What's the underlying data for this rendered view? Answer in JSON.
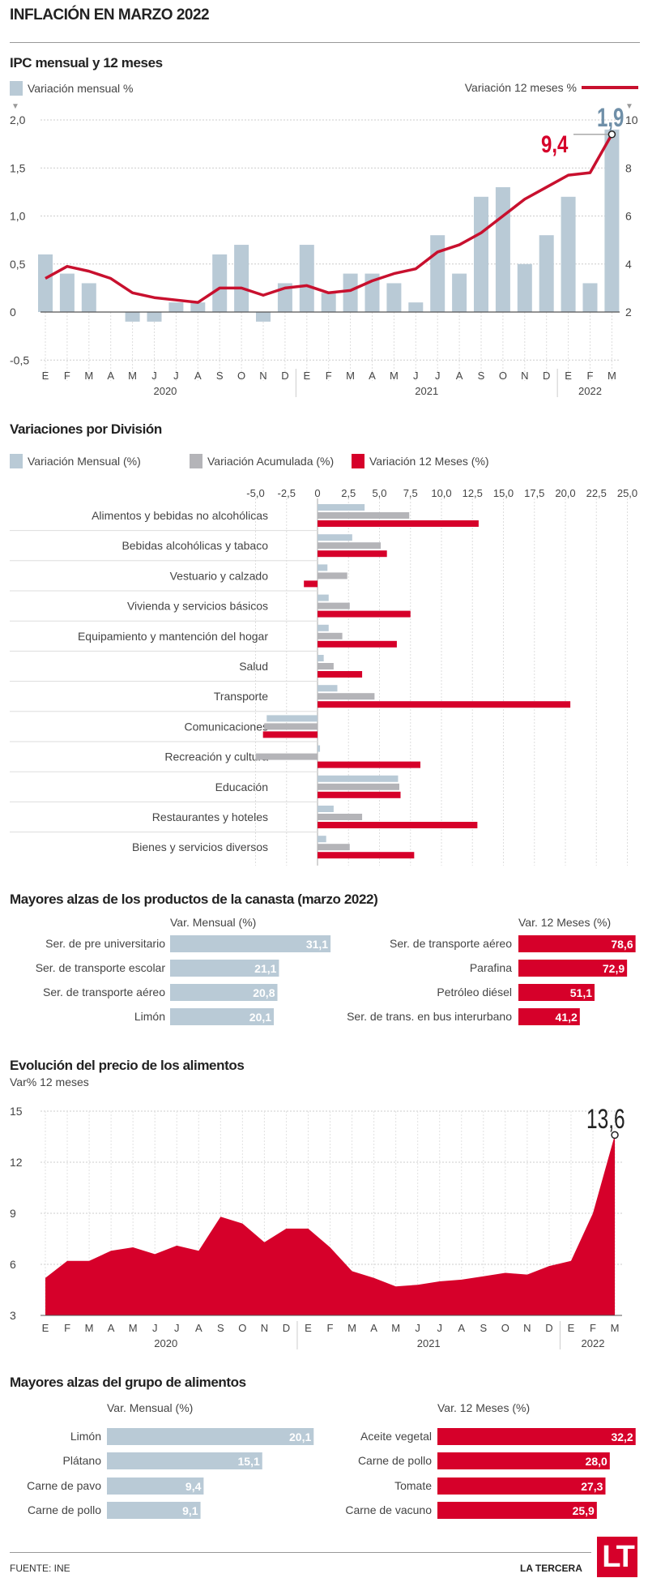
{
  "title": "INFLACIÓN EN MARZO 2022",
  "colors": {
    "blue": "#b9cad6",
    "gray": "#b4b4b8",
    "red": "#d6002a",
    "line": "#c8102e"
  },
  "chart_data": [
    {
      "type": "bar+line",
      "title": "IPC mensual y 12 meses",
      "months": [
        "E",
        "F",
        "M",
        "A",
        "M",
        "J",
        "J",
        "A",
        "S",
        "O",
        "N",
        "D",
        "E",
        "F",
        "M",
        "A",
        "M",
        "J",
        "J",
        "A",
        "S",
        "O",
        "N",
        "D",
        "E",
        "F",
        "M"
      ],
      "years": [
        "2020",
        "2021",
        "2022"
      ],
      "series": [
        {
          "name": "Variación mensual %",
          "axis": "left",
          "values": [
            0.6,
            0.4,
            0.3,
            0.0,
            -0.1,
            -0.1,
            0.1,
            0.1,
            0.6,
            0.7,
            -0.1,
            0.3,
            0.7,
            0.2,
            0.4,
            0.4,
            0.3,
            0.1,
            0.8,
            0.4,
            1.2,
            1.3,
            0.5,
            0.8,
            1.2,
            0.3,
            1.9
          ]
        },
        {
          "name": "Variación 12 meses %",
          "axis": "right",
          "values": [
            3.4,
            3.9,
            3.7,
            3.4,
            2.8,
            2.6,
            2.5,
            2.4,
            3.0,
            3.0,
            2.7,
            3.0,
            3.1,
            2.8,
            2.9,
            3.3,
            3.6,
            3.8,
            4.5,
            4.8,
            5.3,
            6.0,
            6.7,
            7.2,
            7.7,
            7.8,
            9.4
          ]
        }
      ],
      "ylim_left": [
        -0.5,
        2.0
      ],
      "yticks_left": [
        "2,0",
        "1,5",
        "1,0",
        "0,5",
        "0",
        "-0,5"
      ],
      "ylim_right": [
        2,
        10
      ],
      "yticks_right": [
        "10",
        "8",
        "6",
        "4",
        "2"
      ],
      "annotations": {
        "last_bar": "1,9",
        "last_line": "9,4"
      },
      "grid": true
    },
    {
      "type": "bar",
      "orientation": "horizontal",
      "title": "Variaciones por División",
      "categories": [
        "Alimentos y bebidas no alcohólicas",
        "Bebidas alcohólicas y tabaco",
        "Vestuario y calzado",
        "Vivienda y servicios básicos",
        "Equipamiento y mantención del hogar",
        "Salud",
        "Transporte",
        "Comunicaciones",
        "Recreación y cultura",
        "Educación",
        "Restaurantes y hoteles",
        "Bienes y servicios diversos"
      ],
      "series": [
        {
          "name": "Variación Mensual (%)",
          "values": [
            3.8,
            2.8,
            0.8,
            0.9,
            0.9,
            0.5,
            1.6,
            -4.1,
            0.2,
            6.5,
            1.3,
            0.7
          ]
        },
        {
          "name": "Variación Acumulada  (%)",
          "values": [
            7.4,
            5.1,
            2.4,
            2.6,
            2.0,
            1.3,
            4.6,
            -4.3,
            -5.0,
            6.6,
            3.6,
            2.6
          ]
        },
        {
          "name": "Variación 12 Meses  (%)",
          "values": [
            13.0,
            5.6,
            -1.1,
            7.5,
            6.4,
            3.6,
            20.4,
            -4.4,
            8.3,
            6.7,
            12.9,
            7.8
          ]
        }
      ],
      "xlim": [
        -5,
        25
      ],
      "xticks": [
        "-5,0",
        "-2,5",
        "0",
        "2,5",
        "5,0",
        "7,5",
        "10,0",
        "12,5",
        "15,0",
        "17,5",
        "20,0",
        "22,5",
        "25,0"
      ],
      "legend": "top-left",
      "grid": true
    },
    {
      "type": "bar",
      "orientation": "horizontal",
      "title": "Mayores alzas de los productos de la canasta (marzo 2022)",
      "panels": [
        {
          "header": "Var. Mensual (%)",
          "color": "blue",
          "categories": [
            "Ser. de pre universitario",
            "Ser. de transporte escolar",
            "Ser. de transporte aéreo",
            "Limón"
          ],
          "values": [
            31.1,
            21.1,
            20.8,
            20.1
          ],
          "labels": [
            "31,1",
            "21,1",
            "20,8",
            "20,1"
          ]
        },
        {
          "header": "Var. 12 Meses  (%)",
          "color": "red",
          "categories": [
            "Ser. de transporte aéreo",
            "Parafina",
            "Petróleo diésel",
            "Ser. de trans. en bus interurbano"
          ],
          "values": [
            78.6,
            72.9,
            51.1,
            41.2
          ],
          "labels": [
            "78,6",
            "72,9",
            "51,1",
            "41,2"
          ]
        }
      ]
    },
    {
      "type": "area",
      "title": "Evolución del precio de los alimentos",
      "subtitle": "Var% 12 meses",
      "months": [
        "E",
        "F",
        "M",
        "A",
        "M",
        "J",
        "J",
        "A",
        "S",
        "O",
        "N",
        "D",
        "E",
        "F",
        "M",
        "A",
        "M",
        "J",
        "J",
        "A",
        "S",
        "O",
        "N",
        "D",
        "E",
        "F",
        "M"
      ],
      "years": [
        "2020",
        "2021",
        "2022"
      ],
      "values": [
        5.2,
        6.2,
        6.2,
        6.8,
        7.0,
        6.6,
        7.1,
        6.8,
        8.8,
        8.4,
        7.3,
        8.1,
        8.1,
        7.0,
        5.6,
        5.2,
        4.7,
        4.8,
        5.0,
        5.1,
        5.3,
        5.5,
        5.4,
        5.9,
        6.2,
        9.0,
        13.6
      ],
      "ylim": [
        3,
        15
      ],
      "yticks": [
        "15",
        "12",
        "9",
        "6",
        "3"
      ],
      "annotation": "13,6",
      "grid": true
    },
    {
      "type": "bar",
      "orientation": "horizontal",
      "title": "Mayores alzas del grupo de alimentos",
      "panels": [
        {
          "header": "Var. Mensual (%)",
          "color": "blue",
          "categories": [
            "Limón",
            "Plátano",
            "Carne de pavo",
            "Carne de pollo"
          ],
          "values": [
            20.1,
            15.1,
            9.4,
            9.1
          ],
          "labels": [
            "20,1",
            "15,1",
            "9,4",
            "9,1"
          ]
        },
        {
          "header": "Var. 12 Meses  (%)",
          "color": "red",
          "categories": [
            "Aceite vegetal",
            "Carne de pollo",
            "Tomate",
            "Carne de vacuno"
          ],
          "values": [
            32.2,
            28.0,
            27.3,
            25.9
          ],
          "labels": [
            "32,2",
            "28,0",
            "27,3",
            "25,9"
          ]
        }
      ]
    }
  ],
  "footer": {
    "source": "FUENTE: INE",
    "brand": "LA TERCERA",
    "logo": "LT"
  }
}
